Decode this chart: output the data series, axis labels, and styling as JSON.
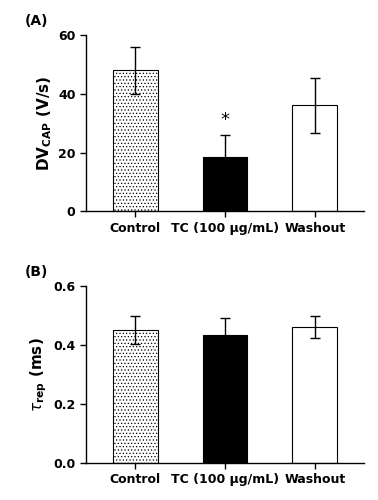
{
  "panel_a": {
    "categories": [
      "Control",
      "TC (100 μg/mL)",
      "Washout"
    ],
    "values": [
      48.0,
      18.5,
      36.0
    ],
    "errors": [
      8.0,
      7.5,
      9.5
    ],
    "ylabel_line1": "DV",
    "ylabel": "DV$_\\mathregular{CAP}$ (V/s)",
    "ylim": [
      0,
      60
    ],
    "yticks": [
      0,
      20,
      40,
      60
    ],
    "label": "(A)",
    "bar_styles": [
      "hatch",
      "black",
      "white"
    ],
    "hatch_pattern": ".....",
    "significance": {
      "bar_index": 1,
      "text": "*"
    }
  },
  "panel_b": {
    "categories": [
      "Control",
      "TC (100 μg/mL)",
      "Washout"
    ],
    "values": [
      0.45,
      0.435,
      0.462
    ],
    "errors": [
      0.048,
      0.058,
      0.038
    ],
    "ylabel": "$\\tau_\\mathregular{rep}$ (ms)",
    "ylim": [
      0.0,
      0.6
    ],
    "yticks": [
      0.0,
      0.2,
      0.4,
      0.6
    ],
    "label": "(B)",
    "bar_styles": [
      "hatch",
      "black",
      "white"
    ],
    "hatch_pattern": "....."
  },
  "bar_width": 0.5,
  "bar_edge_color": "black",
  "background_color": "#ffffff",
  "font_size": 10,
  "label_font_size": 10,
  "tick_font_size": 9,
  "axis_label_fontsize": 11
}
